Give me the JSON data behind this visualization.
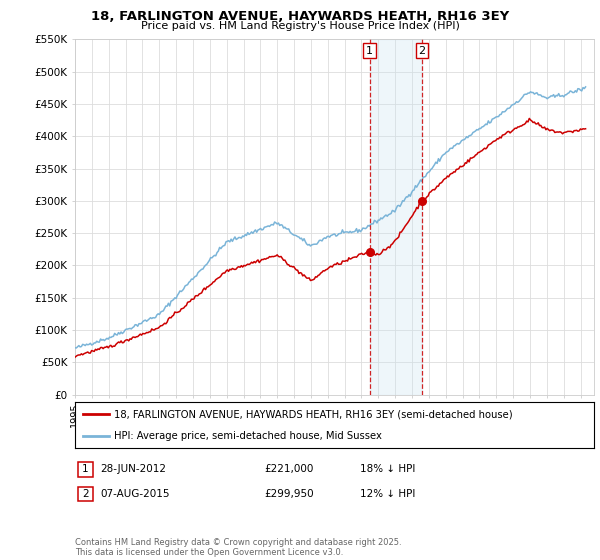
{
  "title": "18, FARLINGTON AVENUE, HAYWARDS HEATH, RH16 3EY",
  "subtitle": "Price paid vs. HM Land Registry's House Price Index (HPI)",
  "ylim": [
    0,
    550000
  ],
  "yticks": [
    0,
    50000,
    100000,
    150000,
    200000,
    250000,
    300000,
    350000,
    400000,
    450000,
    500000,
    550000
  ],
  "ytick_labels": [
    "£0",
    "£50K",
    "£100K",
    "£150K",
    "£200K",
    "£250K",
    "£300K",
    "£350K",
    "£400K",
    "£450K",
    "£500K",
    "£550K"
  ],
  "hpi_color": "#7ab4d8",
  "price_color": "#cc0000",
  "vline_color": "#cc0000",
  "shade_color": "#c8e4f0",
  "transaction1_x": 2012.49,
  "transaction1_price": 221000,
  "transaction2_x": 2015.6,
  "transaction2_price": 299950,
  "legend_entries": [
    "18, FARLINGTON AVENUE, HAYWARDS HEATH, RH16 3EY (semi-detached house)",
    "HPI: Average price, semi-detached house, Mid Sussex"
  ],
  "table_rows": [
    [
      "1",
      "28-JUN-2012",
      "£221,000",
      "18% ↓ HPI"
    ],
    [
      "2",
      "07-AUG-2015",
      "£299,950",
      "12% ↓ HPI"
    ]
  ],
  "footer": "Contains HM Land Registry data © Crown copyright and database right 2025.\nThis data is licensed under the Open Government Licence v3.0.",
  "background_color": "#ffffff",
  "grid_color": "#dddddd"
}
